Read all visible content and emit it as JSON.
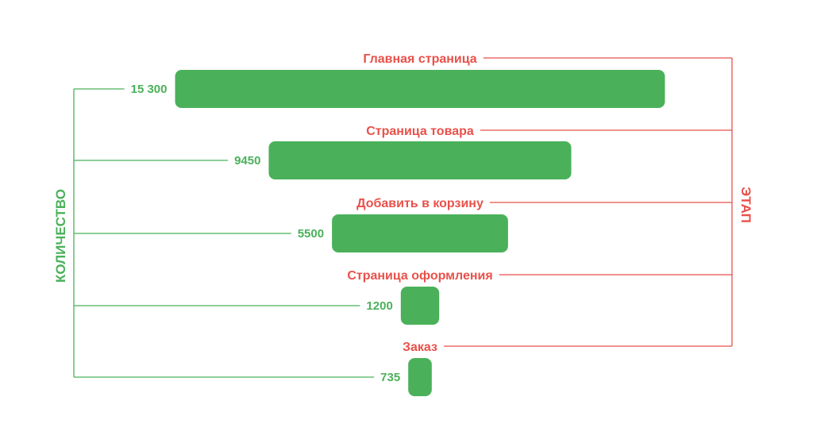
{
  "chart_data": {
    "type": "bar",
    "subtype": "funnel",
    "categories": [
      "Главная страница",
      "Страница товара",
      "Добавить в корзину",
      "Страница оформления",
      "Заказ"
    ],
    "values": [
      15300,
      9450,
      5500,
      1200,
      735
    ],
    "value_labels": [
      "15 300",
      "9450",
      "5500",
      "1200",
      "735"
    ],
    "ylabel": "КОЛИЧЕСТВО",
    "stage_axis_label": "ЭТАП",
    "grid": false,
    "legend": "none"
  },
  "colors": {
    "bar": "#4ab15a",
    "value_text": "#4ab15a",
    "stage_text": "#e8514a",
    "left_bracket": "#4ab15a",
    "right_bracket": "#e8514a",
    "background": "#ffffff"
  }
}
